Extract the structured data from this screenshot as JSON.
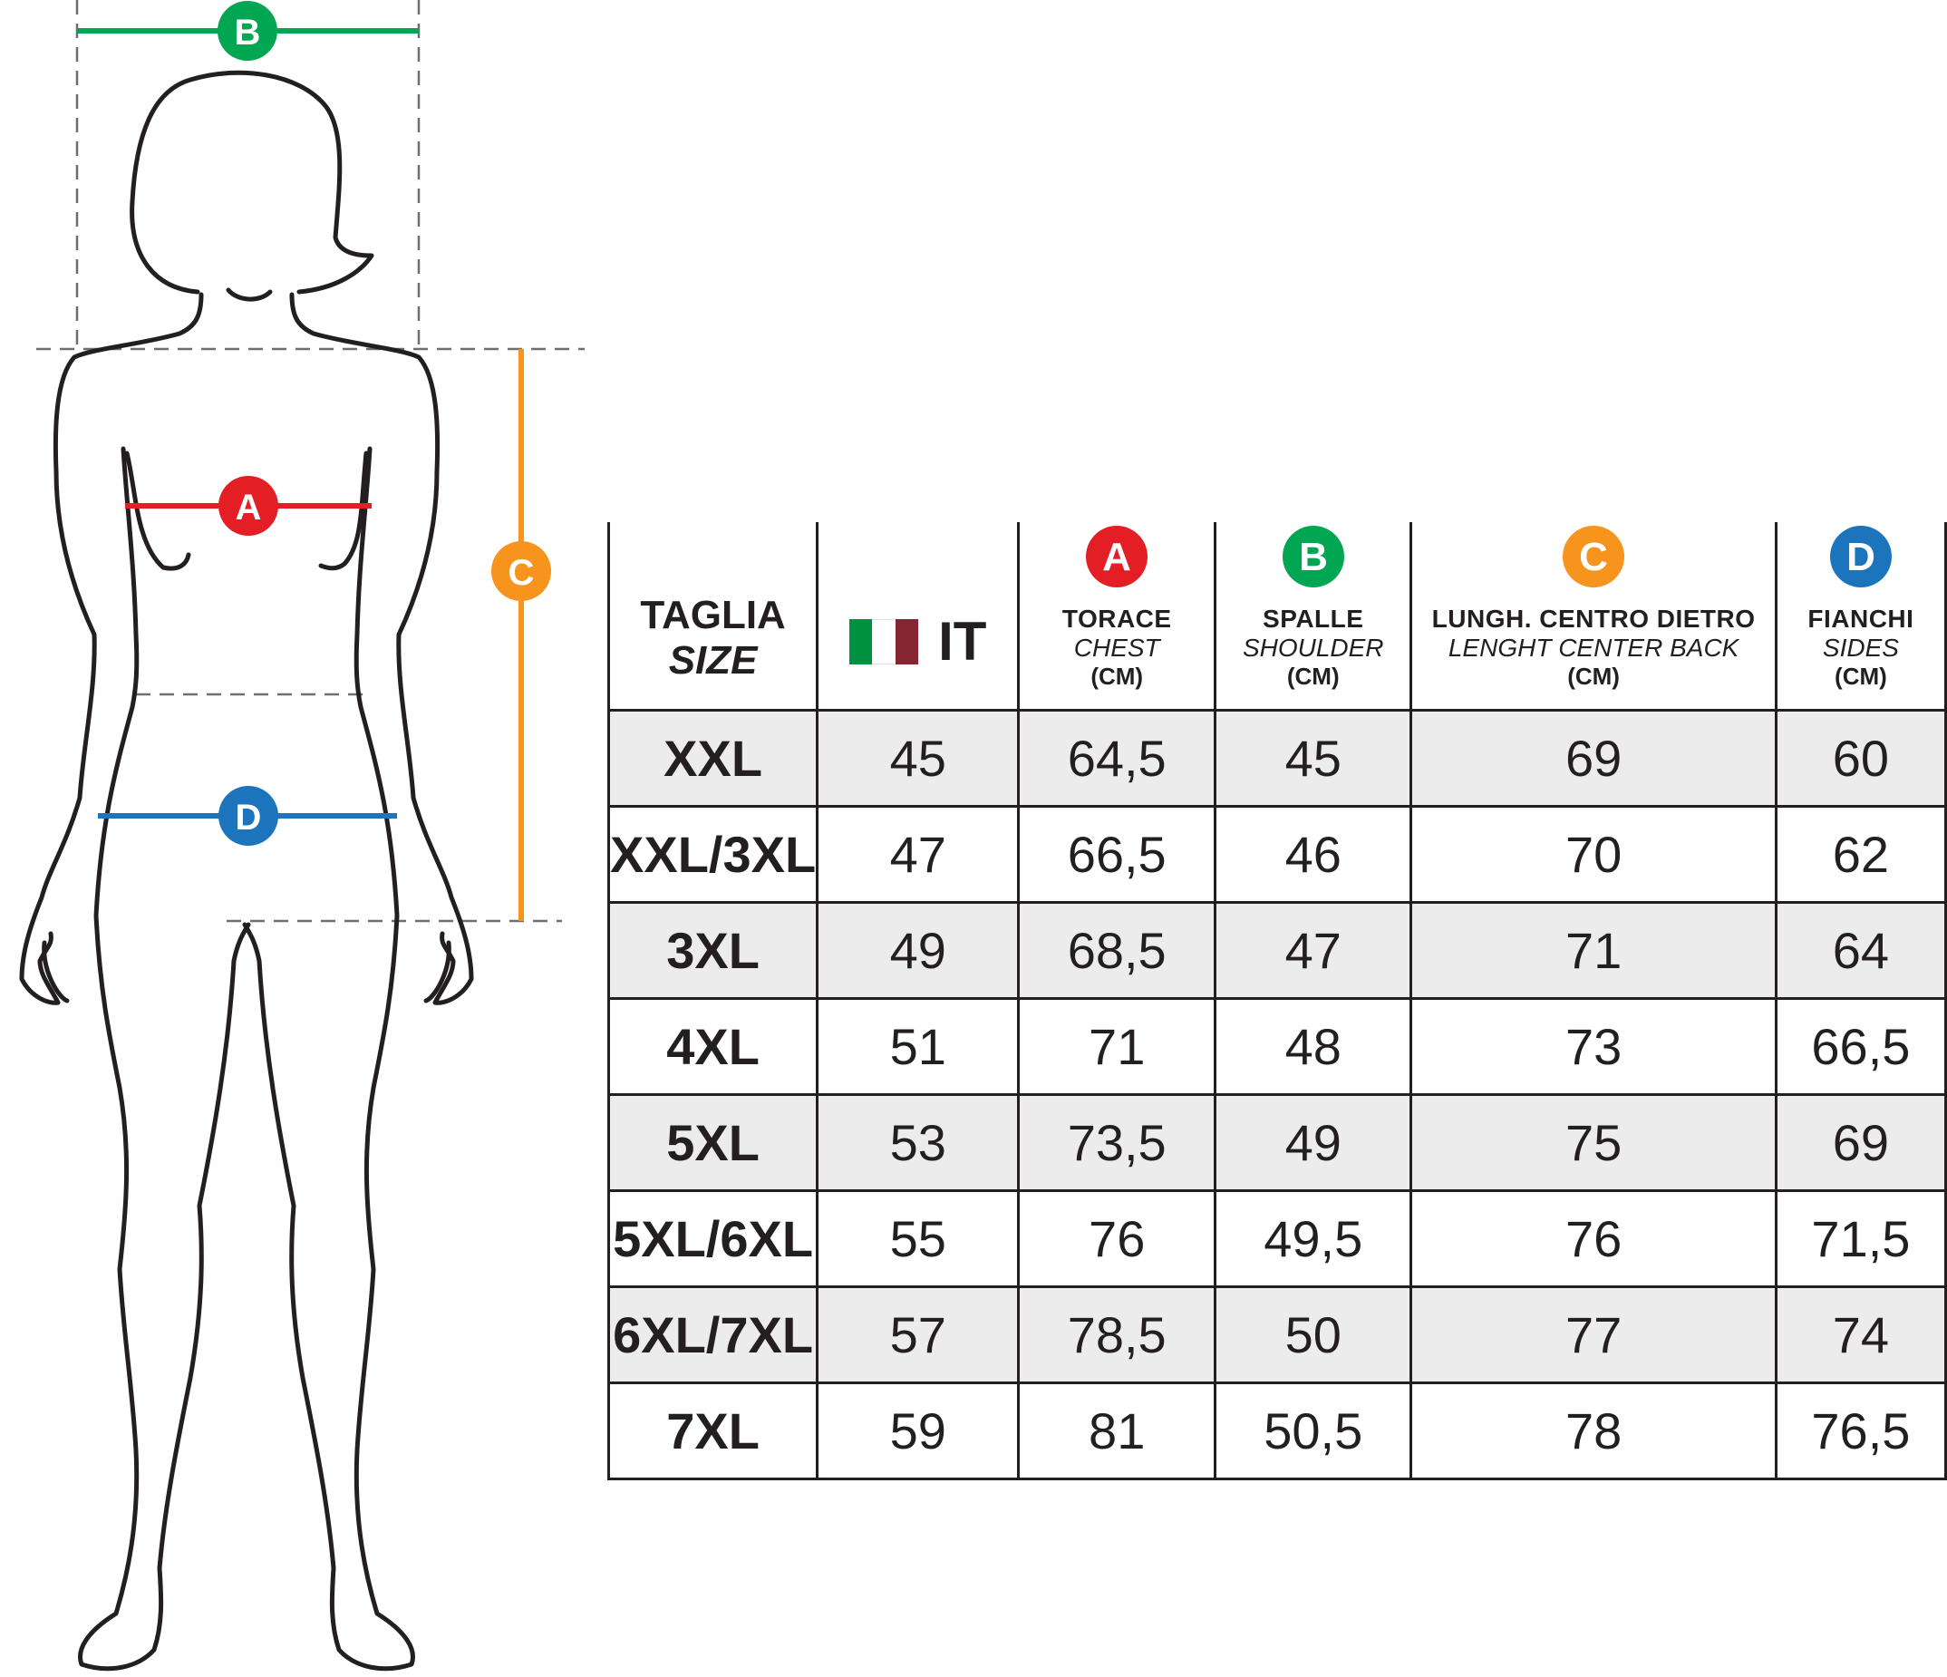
{
  "colors": {
    "A": "#e31e24",
    "B": "#00a651",
    "C": "#f7941d",
    "D": "#1c75bc",
    "flag_green": "#00923f",
    "flag_white": "#ffffff",
    "flag_red": "#862633",
    "row_shade": "#ececec"
  },
  "figure": {
    "marker_a": "A",
    "marker_b": "B",
    "marker_c": "C",
    "marker_d": "D"
  },
  "table": {
    "size_header": {
      "main": "TAGLIA",
      "sub": "SIZE"
    },
    "it_header": {
      "flag_icon": "italy-flag-icon",
      "label": "IT"
    },
    "columns": [
      {
        "marker": "A",
        "main": "TORACE",
        "sub": "CHEST",
        "unit": "(CM)"
      },
      {
        "marker": "B",
        "main": "SPALLE",
        "sub": "SHOULDER",
        "unit": "(CM)"
      },
      {
        "marker": "C",
        "main": "LUNGH. CENTRO DIETRO",
        "sub": "LENGHT CENTER BACK",
        "unit": "(CM)"
      },
      {
        "marker": "D",
        "main": "FIANCHI",
        "sub": "SIDES",
        "unit": "(CM)"
      }
    ],
    "rows": [
      {
        "size": "XXL",
        "it": "45",
        "a": "64,5",
        "b": "45",
        "c": "69",
        "d": "60"
      },
      {
        "size": "XXL/3XL",
        "it": "47",
        "a": "66,5",
        "b": "46",
        "c": "70",
        "d": "62"
      },
      {
        "size": "3XL",
        "it": "49",
        "a": "68,5",
        "b": "47",
        "c": "71",
        "d": "64"
      },
      {
        "size": "4XL",
        "it": "51",
        "a": "71",
        "b": "48",
        "c": "73",
        "d": "66,5"
      },
      {
        "size": "5XL",
        "it": "53",
        "a": "73,5",
        "b": "49",
        "c": "75",
        "d": "69"
      },
      {
        "size": "5XL/6XL",
        "it": "55",
        "a": "76",
        "b": "49,5",
        "c": "76",
        "d": "71,5"
      },
      {
        "size": "6XL/7XL",
        "it": "57",
        "a": "78,5",
        "b": "50",
        "c": "77",
        "d": "74"
      },
      {
        "size": "7XL",
        "it": "59",
        "a": "81",
        "b": "50,5",
        "c": "78",
        "d": "76,5"
      }
    ]
  }
}
